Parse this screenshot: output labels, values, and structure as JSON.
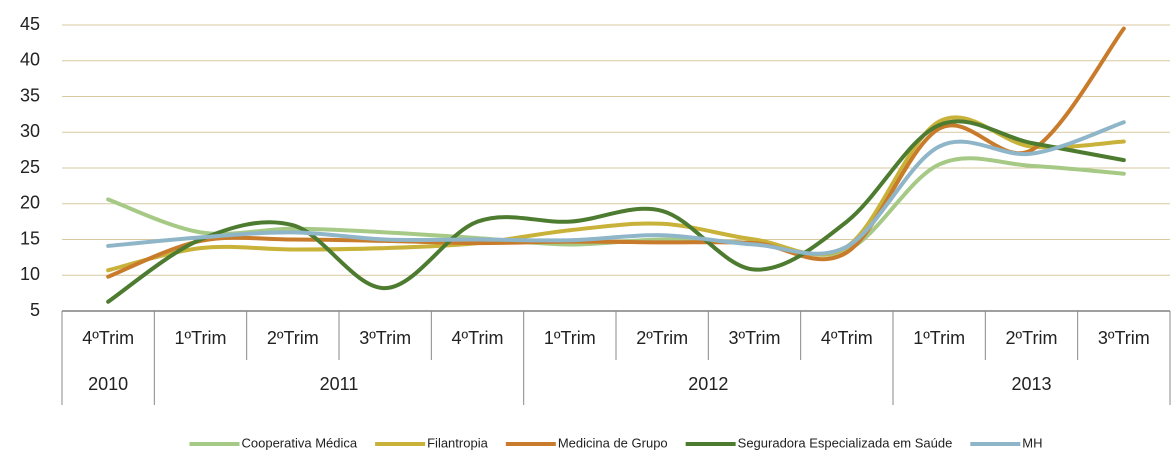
{
  "chart_data": {
    "type": "line",
    "categories": [
      "4ºTrim",
      "1ºTrim",
      "2ºTrim",
      "3ºTrim",
      "4ºTrim",
      "1ºTrim",
      "2ºTrim",
      "3ºTrim",
      "4ºTrim",
      "1ºTrim",
      "2ºTrim",
      "3ºTrim"
    ],
    "category_groups": [
      "2010",
      "2011",
      "2011",
      "2011",
      "2011",
      "2012",
      "2012",
      "2012",
      "2012",
      "2013",
      "2013",
      "2013"
    ],
    "ylim": [
      5,
      45
    ],
    "yticks": [
      5,
      10,
      15,
      20,
      25,
      30,
      35,
      40,
      45
    ],
    "grid": true,
    "smooth": true,
    "legend": "bottom",
    "series": [
      {
        "name": "Cooperativa Médica",
        "color": "#a6c986",
        "values": [
          20.6,
          16,
          16.5,
          16,
          15.2,
          14.3,
          15,
          14.5,
          13.5,
          25.5,
          25.3,
          24.2
        ]
      },
      {
        "name": "Filantropia",
        "color": "#c9b23a",
        "values": [
          10.7,
          13.8,
          13.6,
          13.8,
          14.5,
          16.3,
          17.2,
          15,
          14,
          31.5,
          28,
          28.7
        ]
      },
      {
        "name": "Medicina de Grupo",
        "color": "#c97b2c",
        "values": [
          9.8,
          14.8,
          15,
          14.8,
          14.5,
          14.7,
          14.6,
          14.5,
          13.2,
          30.5,
          27.5,
          44.5
        ]
      },
      {
        "name": "Seguradora Especializada em Saúde",
        "color": "#4d7c30",
        "values": [
          6.3,
          15,
          17,
          8.2,
          17.5,
          17.5,
          19,
          10.8,
          17.5,
          31,
          28.5,
          26.1
        ]
      },
      {
        "name": "MH",
        "color": "#8fb5c9",
        "values": [
          14.1,
          15.3,
          16,
          15,
          15,
          14.9,
          15.6,
          14.3,
          14,
          28,
          27,
          31.4
        ]
      }
    ]
  }
}
